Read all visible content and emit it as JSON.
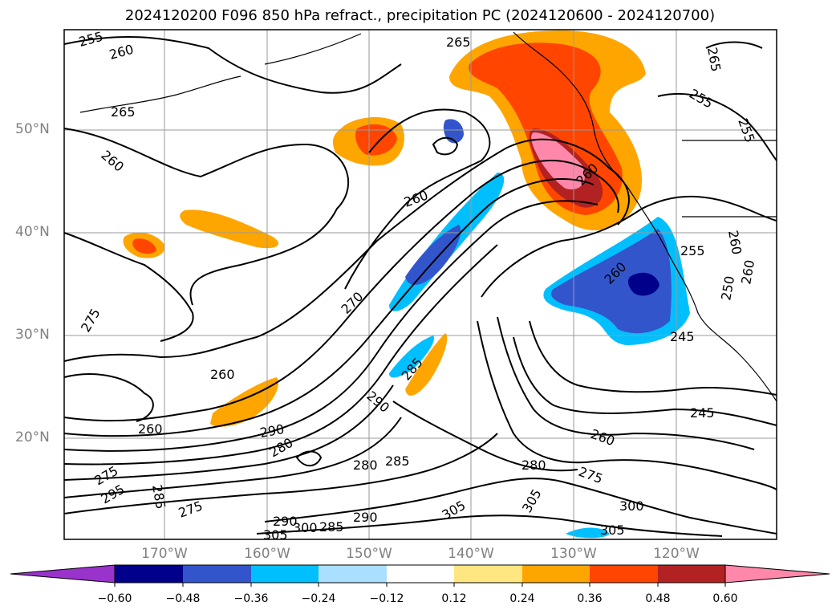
{
  "title": "2024120200 F096 850 hPa refract., precipitation PC (2024120600 - 2024120700)",
  "lat_labels": [
    "50°N",
    "40°N",
    "30°N",
    "20°N"
  ],
  "lon_labels": [
    "170°W",
    "160°W",
    "150°W",
    "140°W",
    "130°W",
    "120°W"
  ],
  "contour_labels": [
    "255",
    "260",
    "265",
    "265",
    "260",
    "260",
    "265",
    "255",
    "260",
    "275",
    "260",
    "270",
    "260",
    "255",
    "260",
    "250",
    "260",
    "255",
    "245",
    "285",
    "290",
    "290",
    "260",
    "280",
    "280",
    "285",
    "260",
    "245",
    "275",
    "280",
    "275",
    "300",
    "295",
    "285",
    "290",
    "275",
    "305",
    "300",
    "290",
    "305",
    "285",
    "305",
    "305"
  ],
  "colorbar": {
    "ticks": [
      "−0.60",
      "−0.48",
      "−0.36",
      "−0.24",
      "−0.12",
      "0.12",
      "0.24",
      "0.36",
      "0.48",
      "0.60"
    ],
    "colors": [
      "#9933cc",
      "#00008b",
      "#3355cc",
      "#00bfff",
      "#aadfff",
      "#ffffff",
      "#ffe680",
      "#ffa500",
      "#ff4500",
      "#b22222",
      "#ff88aa"
    ]
  }
}
